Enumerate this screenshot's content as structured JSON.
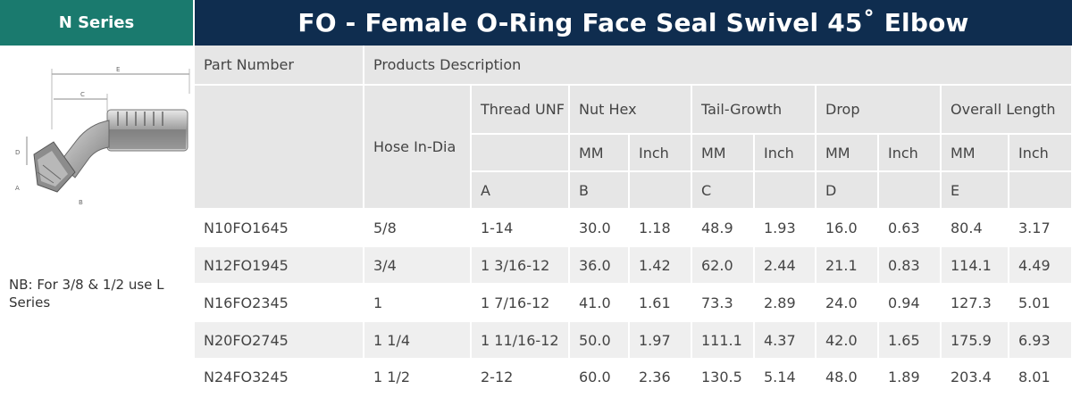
{
  "series_label": "N Series",
  "title": "FO - Female O-Ring Face Seal Swivel 45˚ Elbow",
  "note": "NB: For 3/8 & 1/2 use L Series",
  "drawing_labels": {
    "e": "E",
    "c": "C",
    "d": "D",
    "a": "A",
    "b": "B"
  },
  "table": {
    "part_number": "Part Number",
    "products_description": "Products Description",
    "hose_in_dia": "Hose In-Dia",
    "thread_unf": "Thread UNF",
    "nut_hex": "Nut Hex",
    "tail_growth": "Tail-Growth",
    "drop": "Drop",
    "overall_length": "Overall Length",
    "mm": "MM",
    "inch": "Inch",
    "letters": {
      "a": "A",
      "b": "B",
      "c": "C",
      "d": "D",
      "e": "E"
    },
    "rows": [
      {
        "part": "N10FO1645",
        "hose": "5/8",
        "thread": "1-14",
        "nut_mm": "30.0",
        "nut_in": "1.18",
        "tail_mm": "48.9",
        "tail_in": "1.93",
        "drop_mm": "16.0",
        "drop_in": "0.63",
        "len_mm": "80.4",
        "len_in": "3.17"
      },
      {
        "part": "N12FO1945",
        "hose": "3/4",
        "thread": "1 3/16-12",
        "nut_mm": "36.0",
        "nut_in": "1.42",
        "tail_mm": "62.0",
        "tail_in": "2.44",
        "drop_mm": "21.1",
        "drop_in": "0.83",
        "len_mm": "114.1",
        "len_in": "4.49"
      },
      {
        "part": "N16FO2345",
        "hose": "1",
        "thread": "1 7/16-12",
        "nut_mm": "41.0",
        "nut_in": "1.61",
        "tail_mm": "73.3",
        "tail_in": "2.89",
        "drop_mm": "24.0",
        "drop_in": "0.94",
        "len_mm": "127.3",
        "len_in": "5.01"
      },
      {
        "part": "N20FO2745",
        "hose": "1 1/4",
        "thread": "1 11/16-12",
        "nut_mm": "50.0",
        "nut_in": "1.97",
        "tail_mm": "111.1",
        "tail_in": "4.37",
        "drop_mm": "42.0",
        "drop_in": "1.65",
        "len_mm": "175.9",
        "len_in": "6.93"
      },
      {
        "part": "N24FO3245",
        "hose": "1 1/2",
        "thread": "2-12",
        "nut_mm": "60.0",
        "nut_in": "2.36",
        "tail_mm": "130.5",
        "tail_in": "5.14",
        "drop_mm": "48.0",
        "drop_in": "1.89",
        "len_mm": "203.4",
        "len_in": "8.01"
      }
    ]
  }
}
